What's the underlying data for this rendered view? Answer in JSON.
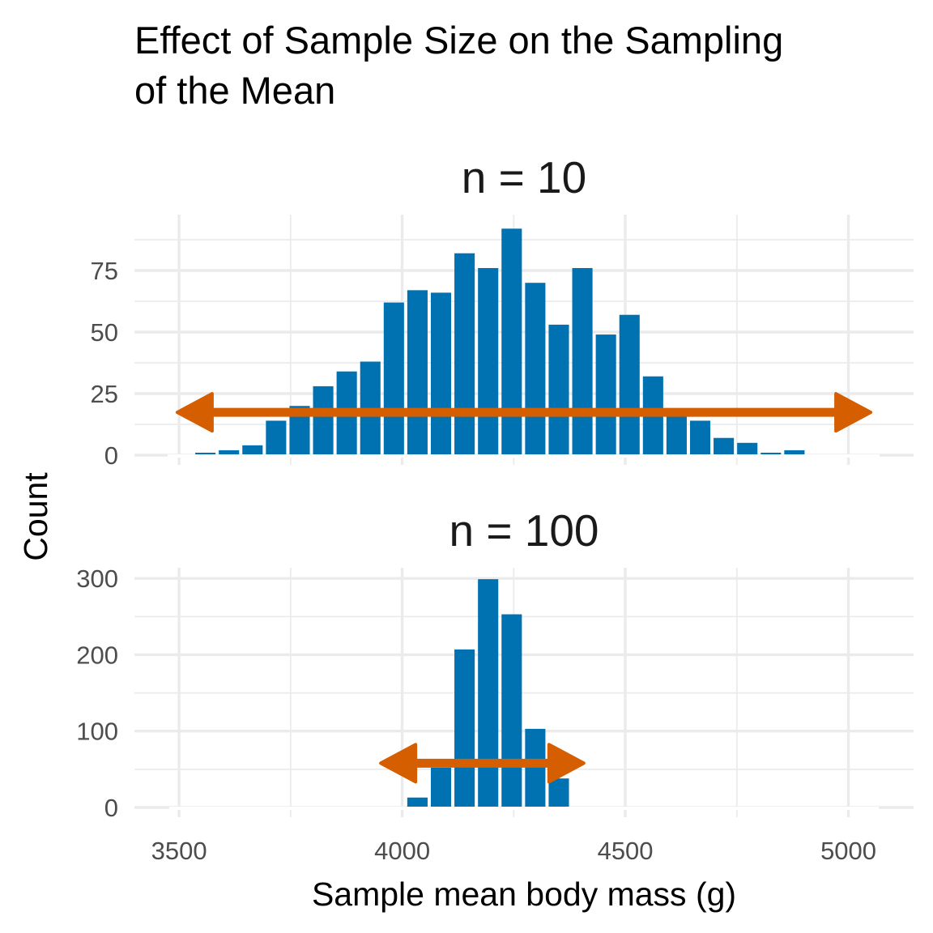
{
  "chart_data": {
    "type": "bar",
    "title_lines": [
      "Effect of Sample Size on the Sampling",
      "of the Mean"
    ],
    "xlabel": "Sample mean body mass (g)",
    "ylabel": "Count",
    "xlim": [
      3400,
      5146
    ],
    "x_ticks": [
      3500,
      4000,
      4500,
      5000
    ],
    "x_tick_labels": [
      "3500",
      "4000",
      "4500",
      "5000"
    ],
    "x_minor_ticks": [
      3750,
      4250,
      4750
    ],
    "bin_width": 52.8,
    "bin_start_center": 3559,
    "colors": {
      "bar": "#0072B2",
      "arrow": "#D55E00",
      "grid": "#EBEBEB",
      "tick_label": "#4D4D4D"
    },
    "grid": true,
    "panels": [
      {
        "label": "n = 10",
        "ylim": [
          0,
          97.7
        ],
        "y_ticks": [
          0,
          25,
          50,
          75
        ],
        "y_tick_labels": [
          "0",
          "25",
          "50",
          "75"
        ],
        "y_minor_ticks": [
          12.5,
          37.5,
          62.5,
          87.5
        ],
        "first_bin_index": 0,
        "counts": [
          1,
          2,
          4,
          14,
          20,
          28,
          34,
          38,
          62,
          67,
          66,
          82,
          76,
          92,
          70,
          53,
          76,
          49,
          57,
          32,
          19,
          14,
          7,
          5,
          1,
          2
        ],
        "arrow": {
          "x_from": 3496,
          "x_to": 5050,
          "y": 17.4,
          "heads": "both"
        }
      },
      {
        "label": "n = 100",
        "ylim": [
          0,
          314
        ],
        "y_ticks": [
          0,
          100,
          200,
          300
        ],
        "y_tick_labels": [
          "0",
          "100",
          "200",
          "300"
        ],
        "y_minor_ticks": [
          50,
          150,
          250
        ],
        "first_bin_index": 9,
        "counts": [
          13,
          52,
          207,
          299,
          253,
          103,
          38
        ],
        "arrow": {
          "x_from": 3952,
          "x_to": 4407,
          "y": 58,
          "heads": "both"
        }
      }
    ]
  }
}
